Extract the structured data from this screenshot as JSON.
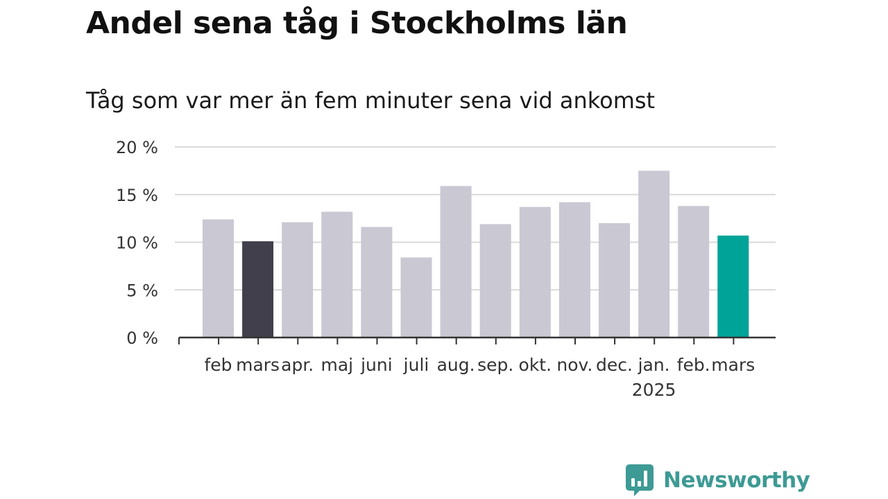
{
  "chart_data": {
    "type": "bar",
    "title": "Andel sena tåg i Stockholms län",
    "subtitle": "Tåg som var mer än fem minuter sena vid ankomst",
    "categories": [
      "feb",
      "mars",
      "apr.",
      "maj",
      "juni",
      "juli",
      "aug.",
      "sep.",
      "okt.",
      "nov.",
      "dec.",
      "jan.",
      "feb.",
      "mars"
    ],
    "year_labels": [
      {
        "category_index": 11,
        "label": "2025"
      }
    ],
    "values": [
      12.4,
      10.1,
      12.1,
      13.2,
      11.6,
      8.4,
      15.9,
      11.9,
      13.7,
      14.2,
      12.0,
      17.5,
      13.8,
      10.7
    ],
    "bar_colors": [
      "#c9c8d3",
      "#413f4c",
      "#c9c8d3",
      "#c9c8d3",
      "#c9c8d3",
      "#c9c8d3",
      "#c9c8d3",
      "#c9c8d3",
      "#c9c8d3",
      "#c9c8d3",
      "#c9c8d3",
      "#c9c8d3",
      "#c9c8d3",
      "#00a398"
    ],
    "ylim": [
      0,
      20
    ],
    "yticks": [
      0,
      5,
      10,
      15,
      20
    ],
    "ytick_labels": [
      "0 %",
      "5 %",
      "10 %",
      "15 %",
      "20 %"
    ],
    "xlabel": "",
    "ylabel": "",
    "grid": true,
    "gridline_color": "#d9d9d9"
  },
  "brand": {
    "name": "Newsworthy",
    "icon": "bar-chart-speech-bubble-icon",
    "color": "#3d9a94"
  }
}
